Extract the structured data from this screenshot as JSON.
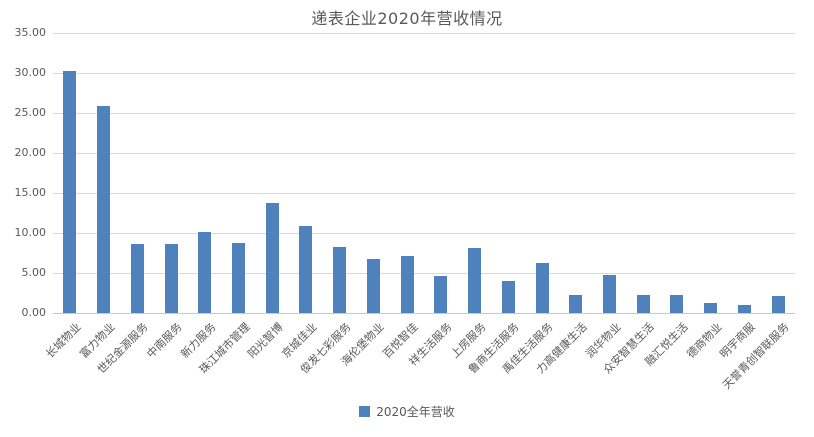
{
  "chart_data": {
    "type": "bar",
    "title": "递表企业2020年营收情况",
    "categories": [
      "长城物业",
      "富力物业",
      "世纪金源服务",
      "中南服务",
      "新力服务",
      "珠江城市管理",
      "阳光智博",
      "京城佳业",
      "俊发七彩服务",
      "海伦堡物业",
      "百悦智佳",
      "祥生活服务",
      "上房服务",
      "鲁商生活服务",
      "禹佳生活服务",
      "力高健康生活",
      "润华物业",
      "众安智慧生活",
      "融汇悦生活",
      "德商物业",
      "明宇商服",
      "天誉青创智联服务"
    ],
    "series": [
      {
        "name": "2020全年营收",
        "values": [
          30.3,
          25.9,
          8.6,
          8.6,
          10.1,
          8.8,
          13.7,
          10.9,
          8.3,
          6.8,
          7.1,
          4.6,
          8.1,
          4.0,
          6.3,
          2.2,
          4.7,
          2.3,
          2.2,
          1.3,
          1.0,
          2.1
        ]
      }
    ],
    "xlabel": "",
    "ylabel": "",
    "ylim": [
      0,
      35
    ],
    "ytick_step": 5,
    "ytick_labels": [
      "0.00",
      "5.00",
      "10.00",
      "15.00",
      "20.00",
      "25.00",
      "30.00",
      "35.00"
    ],
    "grid": true,
    "legend_position": "bottom",
    "colors": {
      "bar": "#4f81bd",
      "gridline": "#d9d9d9",
      "axis_line": "#c9c9c9",
      "text": "#595959"
    }
  }
}
